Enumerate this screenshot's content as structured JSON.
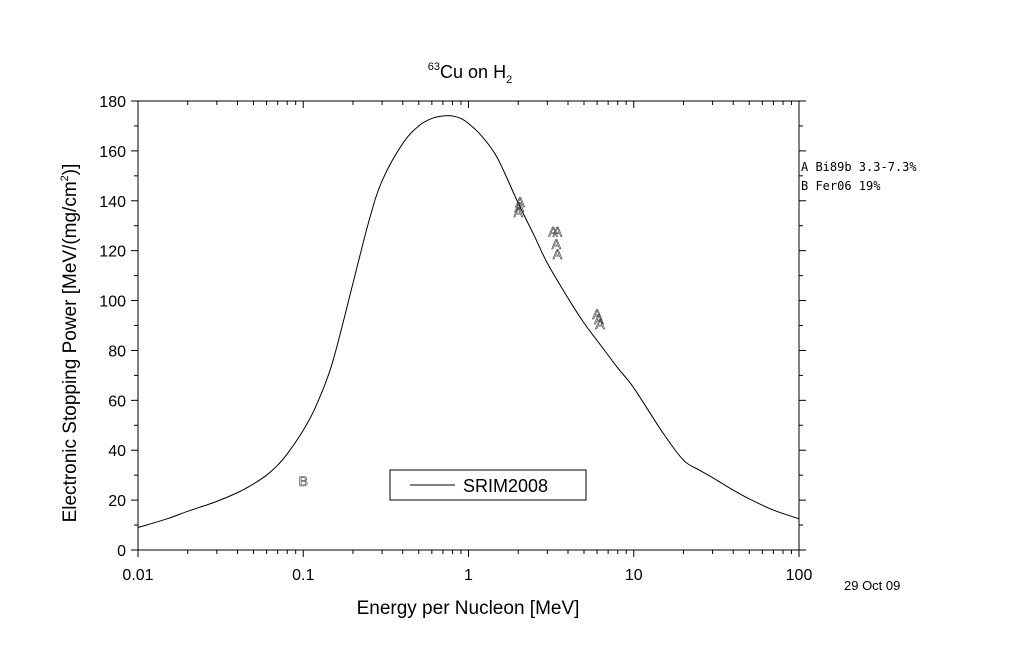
{
  "chart_data": {
    "type": "line",
    "title": {
      "sup": "63",
      "main": "Cu on H",
      "sub": "2"
    },
    "xlabel": "Energy per Nucleon [MeV]",
    "ylabel": {
      "main": "Electronic Stopping Power [MeV/(mg/cm",
      "sup": "2",
      "tail": ")]"
    },
    "xscale": "log",
    "xlim": [
      0.01,
      100
    ],
    "ylim": [
      0,
      180
    ],
    "x_ticks": [
      0.01,
      0.1,
      1,
      10,
      100
    ],
    "x_tick_labels": [
      "0.01",
      "0.1",
      "1",
      "10",
      "100"
    ],
    "y_ticks": [
      0,
      20,
      40,
      60,
      80,
      100,
      120,
      140,
      160,
      180
    ],
    "y_tick_labels": [
      "0",
      "20",
      "40",
      "60",
      "80",
      "100",
      "120",
      "140",
      "160",
      "180"
    ],
    "grid": false,
    "legend_position": "bottom-center",
    "series": [
      {
        "name": "SRIM2008",
        "x": [
          0.01,
          0.015,
          0.02,
          0.03,
          0.04,
          0.05,
          0.06,
          0.07,
          0.08,
          0.1,
          0.12,
          0.15,
          0.2,
          0.25,
          0.3,
          0.4,
          0.5,
          0.6,
          0.7,
          0.8,
          0.9,
          1.0,
          1.2,
          1.5,
          2.0,
          2.5,
          3.0,
          4.0,
          5.0,
          6.0,
          8.0,
          10,
          15,
          20,
          25,
          30,
          40,
          50,
          70,
          100
        ],
        "y": [
          9,
          12.5,
          15.5,
          19.5,
          23,
          26.5,
          30,
          34,
          38.5,
          48,
          58,
          75,
          107,
          132,
          148,
          163,
          170,
          173,
          174,
          174,
          173,
          171,
          166,
          157,
          139,
          126,
          115,
          101,
          91,
          84,
          73,
          65,
          47,
          36,
          32,
          29,
          24,
          20.5,
          16,
          12.5
        ]
      }
    ],
    "points": [
      {
        "label": "A",
        "x": 2.0,
        "y": 136
      },
      {
        "label": "A",
        "x": 2.03,
        "y": 138
      },
      {
        "label": "A",
        "x": 2.05,
        "y": 140
      },
      {
        "label": "A",
        "x": 3.25,
        "y": 128
      },
      {
        "label": "A",
        "x": 3.45,
        "y": 128
      },
      {
        "label": "A",
        "x": 3.4,
        "y": 123
      },
      {
        "label": "A",
        "x": 3.45,
        "y": 119
      },
      {
        "label": "A",
        "x": 6.0,
        "y": 95
      },
      {
        "label": "A",
        "x": 6.15,
        "y": 93
      },
      {
        "label": "A",
        "x": 6.25,
        "y": 91
      },
      {
        "label": "B",
        "x": 0.1,
        "y": 28
      }
    ],
    "annotations": [
      "A Bi89b 3.3-7.3%",
      "B Fer06 19%"
    ],
    "date": "29 Oct 09"
  }
}
